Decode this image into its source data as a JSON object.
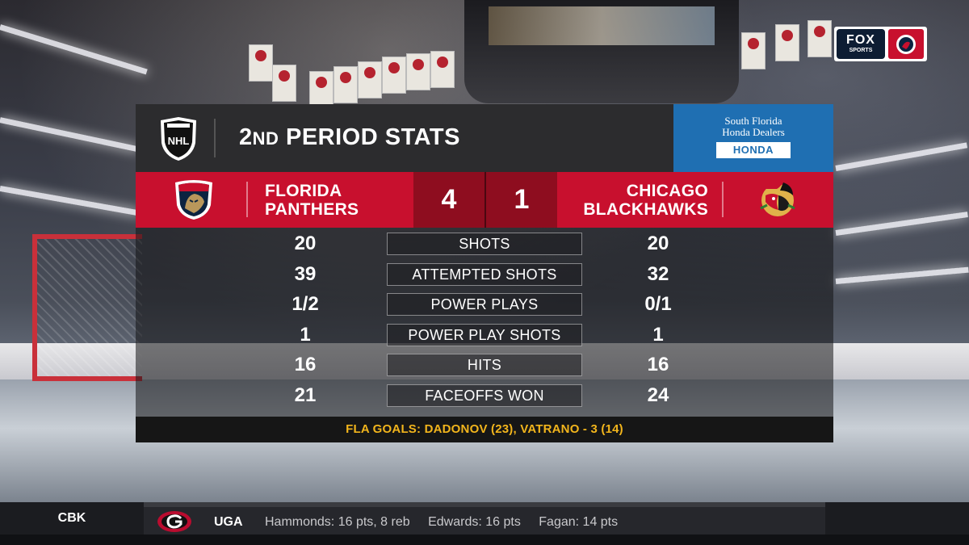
{
  "network": {
    "name": "FOX",
    "sub": "SPORTS"
  },
  "header": {
    "title_num": "2",
    "title_suffix": "ND",
    "title_rest": " PERIOD STATS"
  },
  "sponsor": {
    "line1": "South Florida",
    "line2": "Honda Dealers",
    "brand": "HONDA"
  },
  "home": {
    "line1": "FLORIDA",
    "line2": "PANTHERS",
    "score": "4"
  },
  "away": {
    "line1": "CHICAGO",
    "line2": "BLACKHAWKS",
    "score": "1"
  },
  "stats": [
    {
      "label": "SHOTS",
      "home": "20",
      "away": "20"
    },
    {
      "label": "ATTEMPTED SHOTS",
      "home": "39",
      "away": "32"
    },
    {
      "label": "POWER PLAYS",
      "home": "1/2",
      "away": "0/1"
    },
    {
      "label": "POWER PLAY SHOTS",
      "home": "1",
      "away": "1"
    },
    {
      "label": "HITS",
      "home": "16",
      "away": "16"
    },
    {
      "label": "FACEOFFS WON",
      "home": "21",
      "away": "24"
    }
  ],
  "goals": "FLA GOALS: DADONOV (23), VATRANO - 3 (14)",
  "ticker": {
    "category": "CBK",
    "school": "UGA",
    "items": [
      "Hammonds: 16 pts, 8 reb",
      "Edwards: 16 pts",
      "Fagan: 14 pts"
    ]
  },
  "colors": {
    "panthers_red": "#c8102e",
    "score_bg": "#8e0d1f",
    "goals_text": "#f2b51c",
    "sponsor_blue": "#1f6fb2"
  },
  "icons": [
    "nhl-shield-icon",
    "panthers-logo-icon",
    "blackhawks-logo-icon",
    "georgia-g-icon",
    "fox-sports-logo"
  ]
}
